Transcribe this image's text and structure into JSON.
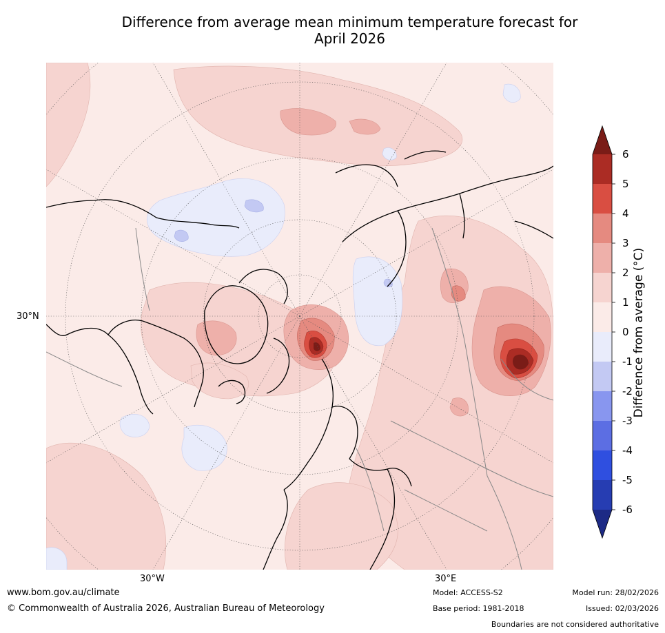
{
  "title": {
    "line1": "Difference from average mean minimum temperature forecast for",
    "line2": "April 2026"
  },
  "map": {
    "projection": "North polar stereographic",
    "axis_labels": {
      "left_lat": "30°N",
      "bottom_left_lon": "30°W",
      "bottom_right_lon": "30°E"
    },
    "anomaly_fill_levels": [
      {
        "range": "0 to 1",
        "color": "#fbebe8"
      },
      {
        "range": "1 to 2",
        "color": "#f6d4d0"
      },
      {
        "range": "2 to 3",
        "color": "#eeb0aa"
      },
      {
        "range": "3 to 4",
        "color": "#e58a80"
      },
      {
        "range": "4 to 5",
        "color": "#d94e42"
      },
      {
        "range": "5 to 6",
        "color": "#ab2c24"
      },
      {
        "range": "above 6",
        "color": "#7a1c17"
      },
      {
        "range": "-1 to 0",
        "color": "#e9ecfb"
      },
      {
        "range": "-2 to -1",
        "color": "#c3c9f3"
      }
    ]
  },
  "colorbar": {
    "title": "Difference from average (°C)",
    "ticks": [
      "6",
      "5",
      "4",
      "3",
      "2",
      "1",
      "0",
      "-1",
      "-2",
      "-3",
      "-4",
      "-5",
      "-6"
    ],
    "colors_top_to_bottom": [
      "#7a1c17",
      "#ab2c24",
      "#d94e42",
      "#e58a80",
      "#eeb0aa",
      "#f6d4d0",
      "#fbebe8",
      "#e9ecfb",
      "#c3c9f3",
      "#8896ef",
      "#5c6ee3",
      "#2f4fe0",
      "#263db2",
      "#1d2a85"
    ]
  },
  "footer": {
    "website": "www.bom.gov.au/climate",
    "copyright": "© Commonwealth of Australia 2026, Australian Bureau of Meteorology",
    "model": "Model: ACCESS-S2",
    "base_period": "Base period: 1981-2018",
    "model_run": "Model run: 28/02/2026",
    "issued": "Issued: 02/03/2026",
    "disclaimer": "Boundaries are not considered authoritative"
  }
}
